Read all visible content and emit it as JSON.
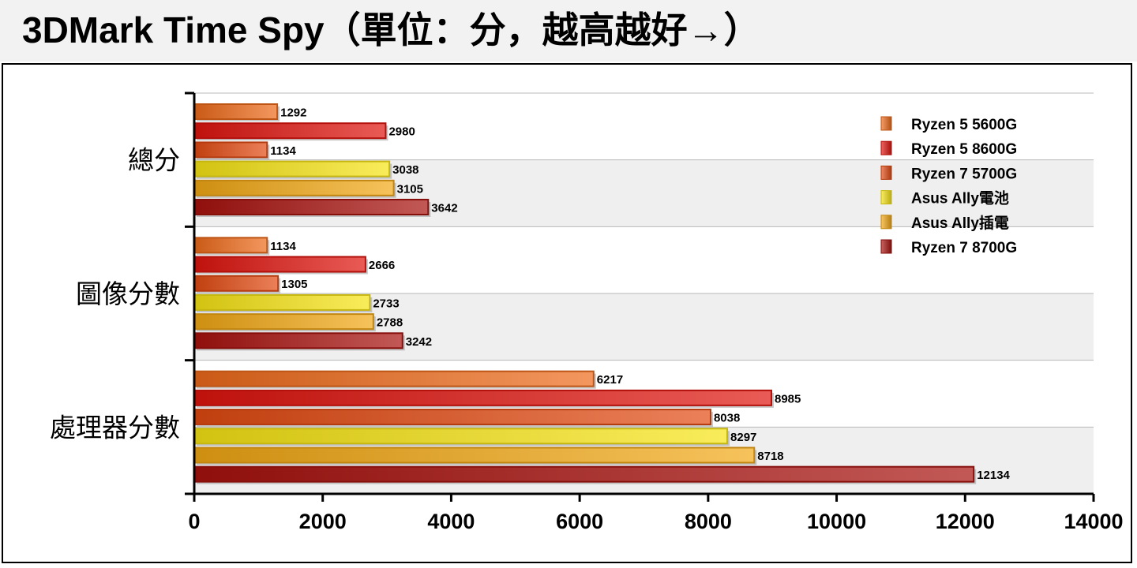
{
  "title": "3DMark Time Spy（單位：分，越高越好→）",
  "chart_data": {
    "type": "bar",
    "orientation": "horizontal",
    "title": "3DMark Time Spy（單位：分，越高越好→）",
    "categories": [
      "總分",
      "圖像分數",
      "處理器分數"
    ],
    "series": [
      {
        "name": "Ryzen 5 5600G",
        "values": [
          1292,
          1134,
          6217
        ],
        "color": "#ee6a1a"
      },
      {
        "name": "Ryzen 5 8600G",
        "values": [
          2980,
          2666,
          8985
        ],
        "color": "#e0140e"
      },
      {
        "name": "Ryzen 7 5700G",
        "values": [
          1134,
          1305,
          8038
        ],
        "color": "#e24a12"
      },
      {
        "name": "Asus Ally電池",
        "values": [
          3038,
          2733,
          8297
        ],
        "color": "#f7e414"
      },
      {
        "name": "Asus Ally插電",
        "values": [
          3105,
          2788,
          8718
        ],
        "color": "#f2a814"
      },
      {
        "name": "Ryzen 7 8700G",
        "values": [
          3642,
          3242,
          12134
        ],
        "color": "#a8120e"
      }
    ],
    "xlim": [
      0,
      14000
    ],
    "x_ticks": [
      0,
      2000,
      4000,
      6000,
      8000,
      10000,
      12000,
      14000
    ],
    "xlabel": "",
    "ylabel": "",
    "grid": true,
    "legend_position": "top-right"
  }
}
